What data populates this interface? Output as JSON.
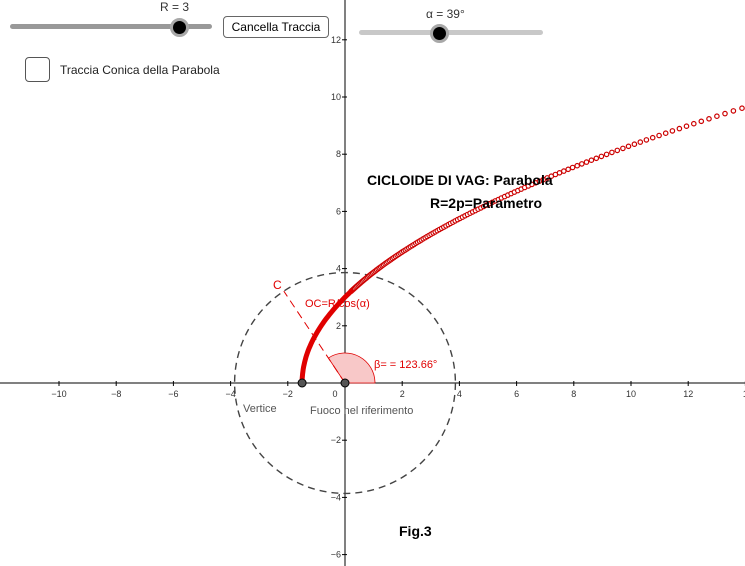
{
  "sliders": {
    "r": {
      "label": "R = 3",
      "value": 3,
      "fraction": 0.83
    },
    "alpha": {
      "label": "α = 39°",
      "value": 39,
      "fraction": 0.43
    }
  },
  "buttons": {
    "cancel_trace": "Cancella Traccia"
  },
  "checkbox": {
    "label": "Traccia Conica della Parabola",
    "checked": false
  },
  "diagram": {
    "title_line1": "CICLOIDE DI VAG:  Parabola",
    "title_line2": "R=2p=Parametro",
    "figure_label": "Fig.3",
    "point_c": "C",
    "oc_label": "OC=R/cos(α)",
    "beta_label": "β= = 123.66°",
    "vertex_label": "Vertice",
    "focus_label": "Fuoco nel riferimento",
    "x_ticks": [
      "−10",
      "−8",
      "−6",
      "−4",
      "−2",
      "0",
      "2",
      "4",
      "6",
      "8",
      "10",
      "12",
      "1"
    ],
    "y_ticks": [
      "12",
      "10",
      "8",
      "6",
      "4",
      "2",
      "−2",
      "−4",
      "−6"
    ],
    "R": 3,
    "alpha_deg": 39,
    "beta_deg": 123.66,
    "colors": {
      "curve": "#e00000",
      "trace": "#cc0000",
      "circle": "#444444",
      "angle_fill": "#f8c8c8",
      "axis": "#000000"
    }
  }
}
